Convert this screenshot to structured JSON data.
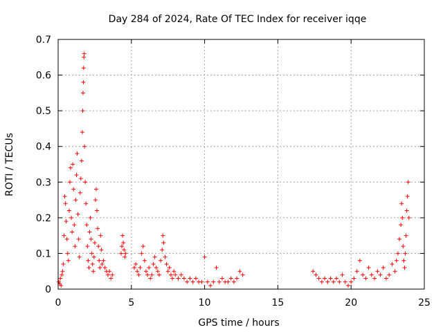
{
  "chart_data": {
    "type": "scatter",
    "title": "Day 284 of 2024, Rate Of TEC Index for receiver iqqe",
    "xlabel": "GPS time / hours",
    "ylabel": "ROTI / TECUs",
    "xlim": [
      0,
      25
    ],
    "ylim": [
      0,
      0.7
    ],
    "x_ticks": [
      "0",
      "5",
      "10",
      "15",
      "20",
      "25"
    ],
    "y_ticks": [
      "0",
      "0.1",
      "0.2",
      "0.3",
      "0.4",
      "0.5",
      "0.6",
      "0.7"
    ],
    "x_tick_values": [
      0,
      5,
      10,
      15,
      20,
      25
    ],
    "y_tick_values": [
      0,
      0.1,
      0.2,
      0.3,
      0.4,
      0.5,
      0.6,
      0.7
    ],
    "grid": true,
    "marker": "plus",
    "color": "#ff0000",
    "series": [
      {
        "points": [
          [
            0.05,
            0.02
          ],
          [
            0.1,
            0.015
          ],
          [
            0.15,
            0.03
          ],
          [
            0.2,
            0.01
          ],
          [
            0.25,
            0.04
          ],
          [
            0.3,
            0.05
          ],
          [
            0.35,
            0.07
          ],
          [
            0.4,
            0.15
          ],
          [
            0.45,
            0.26
          ],
          [
            0.5,
            0.24
          ],
          [
            0.55,
            0.19
          ],
          [
            0.6,
            0.14
          ],
          [
            0.65,
            0.1
          ],
          [
            0.7,
            0.08
          ],
          [
            0.75,
            0.22
          ],
          [
            0.8,
            0.3
          ],
          [
            0.85,
            0.34
          ],
          [
            0.9,
            0.2
          ],
          [
            0.95,
            0.16
          ],
          [
            1.0,
            0.35
          ],
          [
            1.05,
            0.28
          ],
          [
            1.1,
            0.18
          ],
          [
            1.15,
            0.12
          ],
          [
            1.2,
            0.25
          ],
          [
            1.25,
            0.32
          ],
          [
            1.3,
            0.38
          ],
          [
            1.35,
            0.21
          ],
          [
            1.4,
            0.14
          ],
          [
            1.45,
            0.09
          ],
          [
            1.5,
            0.27
          ],
          [
            1.55,
            0.31
          ],
          [
            1.6,
            0.36
          ],
          [
            1.65,
            0.44
          ],
          [
            1.68,
            0.5
          ],
          [
            1.7,
            0.55
          ],
          [
            1.72,
            0.58
          ],
          [
            1.74,
            0.62
          ],
          [
            1.76,
            0.65
          ],
          [
            1.78,
            0.66
          ],
          [
            1.8,
            0.4
          ],
          [
            1.85,
            0.3
          ],
          [
            1.9,
            0.24
          ],
          [
            1.95,
            0.18
          ],
          [
            2.0,
            0.12
          ],
          [
            2.05,
            0.08
          ],
          [
            2.1,
            0.06
          ],
          [
            2.15,
            0.16
          ],
          [
            2.2,
            0.2
          ],
          [
            2.25,
            0.14
          ],
          [
            2.3,
            0.1
          ],
          [
            2.35,
            0.07
          ],
          [
            2.4,
            0.05
          ],
          [
            2.45,
            0.09
          ],
          [
            2.5,
            0.13
          ],
          [
            2.55,
            0.25
          ],
          [
            2.6,
            0.28
          ],
          [
            2.65,
            0.22
          ],
          [
            2.7,
            0.17
          ],
          [
            2.75,
            0.12
          ],
          [
            2.8,
            0.08
          ],
          [
            2.85,
            0.06
          ],
          [
            2.9,
            0.15
          ],
          [
            2.95,
            0.11
          ],
          [
            3.0,
            0.07
          ],
          [
            3.1,
            0.08
          ],
          [
            3.2,
            0.06
          ],
          [
            3.3,
            0.05
          ],
          [
            3.4,
            0.04
          ],
          [
            3.5,
            0.05
          ],
          [
            3.6,
            0.03
          ],
          [
            3.7,
            0.04
          ],
          [
            4.3,
            0.1
          ],
          [
            4.35,
            0.12
          ],
          [
            4.4,
            0.15
          ],
          [
            4.45,
            0.13
          ],
          [
            4.5,
            0.11
          ],
          [
            4.55,
            0.09
          ],
          [
            4.6,
            0.1
          ],
          [
            5.2,
            0.06
          ],
          [
            5.3,
            0.07
          ],
          [
            5.4,
            0.05
          ],
          [
            5.5,
            0.04
          ],
          [
            5.6,
            0.06
          ],
          [
            5.7,
            0.1
          ],
          [
            5.8,
            0.12
          ],
          [
            5.9,
            0.08
          ],
          [
            6.0,
            0.05
          ],
          [
            6.1,
            0.04
          ],
          [
            6.2,
            0.06
          ],
          [
            6.3,
            0.03
          ],
          [
            6.4,
            0.04
          ],
          [
            6.5,
            0.07
          ],
          [
            6.6,
            0.09
          ],
          [
            6.7,
            0.06
          ],
          [
            6.8,
            0.05
          ],
          [
            6.9,
            0.04
          ],
          [
            7.0,
            0.08
          ],
          [
            7.1,
            0.11
          ],
          [
            7.15,
            0.15
          ],
          [
            7.2,
            0.13
          ],
          [
            7.3,
            0.09
          ],
          [
            7.4,
            0.07
          ],
          [
            7.5,
            0.05
          ],
          [
            7.6,
            0.06
          ],
          [
            7.7,
            0.04
          ],
          [
            7.8,
            0.03
          ],
          [
            7.9,
            0.05
          ],
          [
            8.0,
            0.04
          ],
          [
            8.2,
            0.03
          ],
          [
            8.4,
            0.04
          ],
          [
            8.6,
            0.03
          ],
          [
            8.8,
            0.02
          ],
          [
            9.0,
            0.03
          ],
          [
            9.2,
            0.02
          ],
          [
            9.4,
            0.03
          ],
          [
            9.6,
            0.02
          ],
          [
            9.8,
            0.02
          ],
          [
            10.0,
            0.09
          ],
          [
            10.2,
            0.02
          ],
          [
            10.4,
            0.01
          ],
          [
            10.6,
            0.02
          ],
          [
            10.8,
            0.06
          ],
          [
            11.0,
            0.02
          ],
          [
            11.2,
            0.03
          ],
          [
            11.4,
            0.02
          ],
          [
            11.6,
            0.02
          ],
          [
            11.8,
            0.03
          ],
          [
            12.0,
            0.02
          ],
          [
            12.2,
            0.03
          ],
          [
            12.4,
            0.05
          ],
          [
            12.6,
            0.04
          ],
          [
            17.4,
            0.05
          ],
          [
            17.6,
            0.04
          ],
          [
            17.8,
            0.03
          ],
          [
            18.0,
            0.02
          ],
          [
            18.2,
            0.03
          ],
          [
            18.4,
            0.02
          ],
          [
            18.6,
            0.03
          ],
          [
            18.8,
            0.02
          ],
          [
            19.0,
            0.03
          ],
          [
            19.2,
            0.02
          ],
          [
            19.4,
            0.04
          ],
          [
            19.6,
            0.02
          ],
          [
            19.8,
            0.01
          ],
          [
            20.0,
            0.02
          ],
          [
            20.2,
            0.03
          ],
          [
            20.4,
            0.05
          ],
          [
            20.6,
            0.08
          ],
          [
            20.8,
            0.04
          ],
          [
            21.0,
            0.03
          ],
          [
            21.2,
            0.06
          ],
          [
            21.4,
            0.04
          ],
          [
            21.6,
            0.03
          ],
          [
            21.8,
            0.05
          ],
          [
            22.0,
            0.04
          ],
          [
            22.2,
            0.06
          ],
          [
            22.4,
            0.03
          ],
          [
            22.6,
            0.04
          ],
          [
            22.8,
            0.07
          ],
          [
            23.0,
            0.05
          ],
          [
            23.1,
            0.08
          ],
          [
            23.2,
            0.1
          ],
          [
            23.3,
            0.14
          ],
          [
            23.4,
            0.18
          ],
          [
            23.45,
            0.24
          ],
          [
            23.5,
            0.2
          ],
          [
            23.55,
            0.12
          ],
          [
            23.6,
            0.08
          ],
          [
            23.65,
            0.06
          ],
          [
            23.7,
            0.1
          ],
          [
            23.75,
            0.15
          ],
          [
            23.8,
            0.22
          ],
          [
            23.85,
            0.26
          ],
          [
            23.9,
            0.3
          ],
          [
            23.95,
            0.2
          ]
        ]
      }
    ]
  }
}
